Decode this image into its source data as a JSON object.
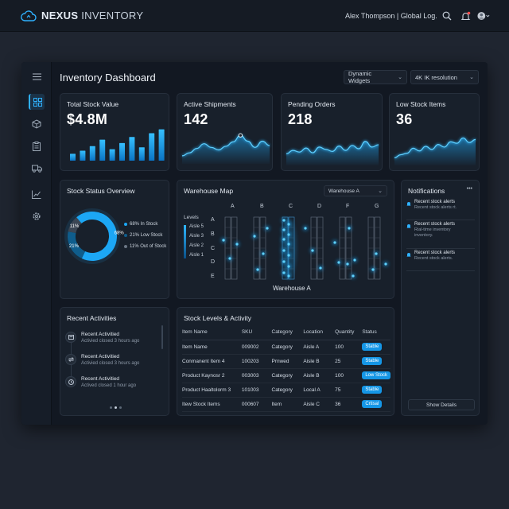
{
  "app": {
    "brand_bold": "NEXUS",
    "brand_light": "INVENTORY",
    "user": "Alex Thompson | Global Log."
  },
  "dashboard": {
    "title": "Inventory Dashboard",
    "dropdown_widgets": "Dynamic Widgets",
    "dropdown_resolution": "4K IK resolution"
  },
  "sidebar": {
    "items": [
      "menu-icon",
      "dashboard-icon",
      "box-icon",
      "clipboard-icon",
      "truck-icon",
      "analytics-icon",
      "settings-icon"
    ]
  },
  "kpis": [
    {
      "label": "Total Stock Value",
      "value": "$4.8M"
    },
    {
      "label": "Active Shipments",
      "value": "142"
    },
    {
      "label": "Pending Orders",
      "value": "218"
    },
    {
      "label": "Low Stock Items",
      "value": "36"
    }
  ],
  "stock_status": {
    "title": "Stock Status Overview",
    "segments": [
      {
        "label": "68% In Stock",
        "value": 68,
        "short": "68%",
        "color": "#1ca7f5"
      },
      {
        "label": "21% Low Stock",
        "value": 21,
        "short": "21%",
        "color": "#0f5d8c"
      },
      {
        "label": "11% Out of Stock",
        "value": 11,
        "short": "11%",
        "color": "#3b4654"
      }
    ]
  },
  "warehouse": {
    "title": "Warehouse Map",
    "selector": "Warehouse A",
    "columns": [
      "A",
      "B",
      "C",
      "D",
      "F",
      "G"
    ],
    "rows": [
      "A",
      "B",
      "C",
      "D",
      "E"
    ],
    "levels_title": "Levels",
    "levels": [
      "Aisle 5",
      "Aisle 3",
      "Aisle 2",
      "Aisle 1"
    ],
    "caption": "Warehouse A"
  },
  "activities": {
    "title": "Recent Activities",
    "items": [
      {
        "title": "Recent Activitied",
        "sub": "Activied closed 3 hours ago"
      },
      {
        "title": "Recent Activitied",
        "sub": "Activied closed 3 hours ago"
      },
      {
        "title": "Recent Activitied",
        "sub": "Actived closed 1 hour ago"
      }
    ]
  },
  "stock_table": {
    "title": "Stock Levels & Activity",
    "headers": [
      "Item Name",
      "SKU",
      "Category",
      "Location",
      "Quantity",
      "Status"
    ],
    "rows": [
      [
        "Item Name",
        "009002",
        "Category",
        "Aisle A",
        "100",
        "Stable"
      ],
      [
        "Conmanent Item 4",
        "100203",
        "Prnwed",
        "Aisle B",
        "25",
        "Stable"
      ],
      [
        "Product Kaynosr 2",
        "003003",
        "Category",
        "Aisle B",
        "100",
        "Low Stock"
      ],
      [
        "Product Haaltolorm 3",
        "101003",
        "Category",
        "Local A",
        "75",
        "Stable"
      ],
      [
        "Itew Stock Items",
        "000607",
        "Item",
        "Aisle C",
        "36",
        "Crtisal"
      ]
    ]
  },
  "notifications": {
    "title": "Notifications",
    "more": "•••",
    "items": [
      {
        "title": "Recent stock alerts",
        "sub": "Recent stock alerts rt."
      },
      {
        "title": "Recent stock alerts",
        "sub": "Rial-time inventory inventory."
      },
      {
        "title": "Recent stock alerts",
        "sub": "Recent stock alerts."
      }
    ],
    "button": "Show Details"
  },
  "charts": {
    "total_stock_bars": [
      0.18,
      0.26,
      0.38,
      0.55,
      0.3,
      0.46,
      0.62,
      0.35,
      0.72,
      0.82
    ],
    "shipments_line": [
      0.22,
      0.3,
      0.42,
      0.55,
      0.45,
      0.38,
      0.48,
      0.6,
      0.78,
      0.62,
      0.45,
      0.62,
      0.5
    ],
    "orders_line": [
      0.35,
      0.45,
      0.4,
      0.52,
      0.38,
      0.55,
      0.48,
      0.42,
      0.58,
      0.45,
      0.6,
      0.5,
      0.72,
      0.55,
      0.62
    ],
    "lowstock_line": [
      0.2,
      0.28,
      0.32,
      0.45,
      0.38,
      0.5,
      0.42,
      0.55,
      0.48,
      0.62,
      0.58,
      0.72,
      0.6,
      0.68
    ]
  }
}
